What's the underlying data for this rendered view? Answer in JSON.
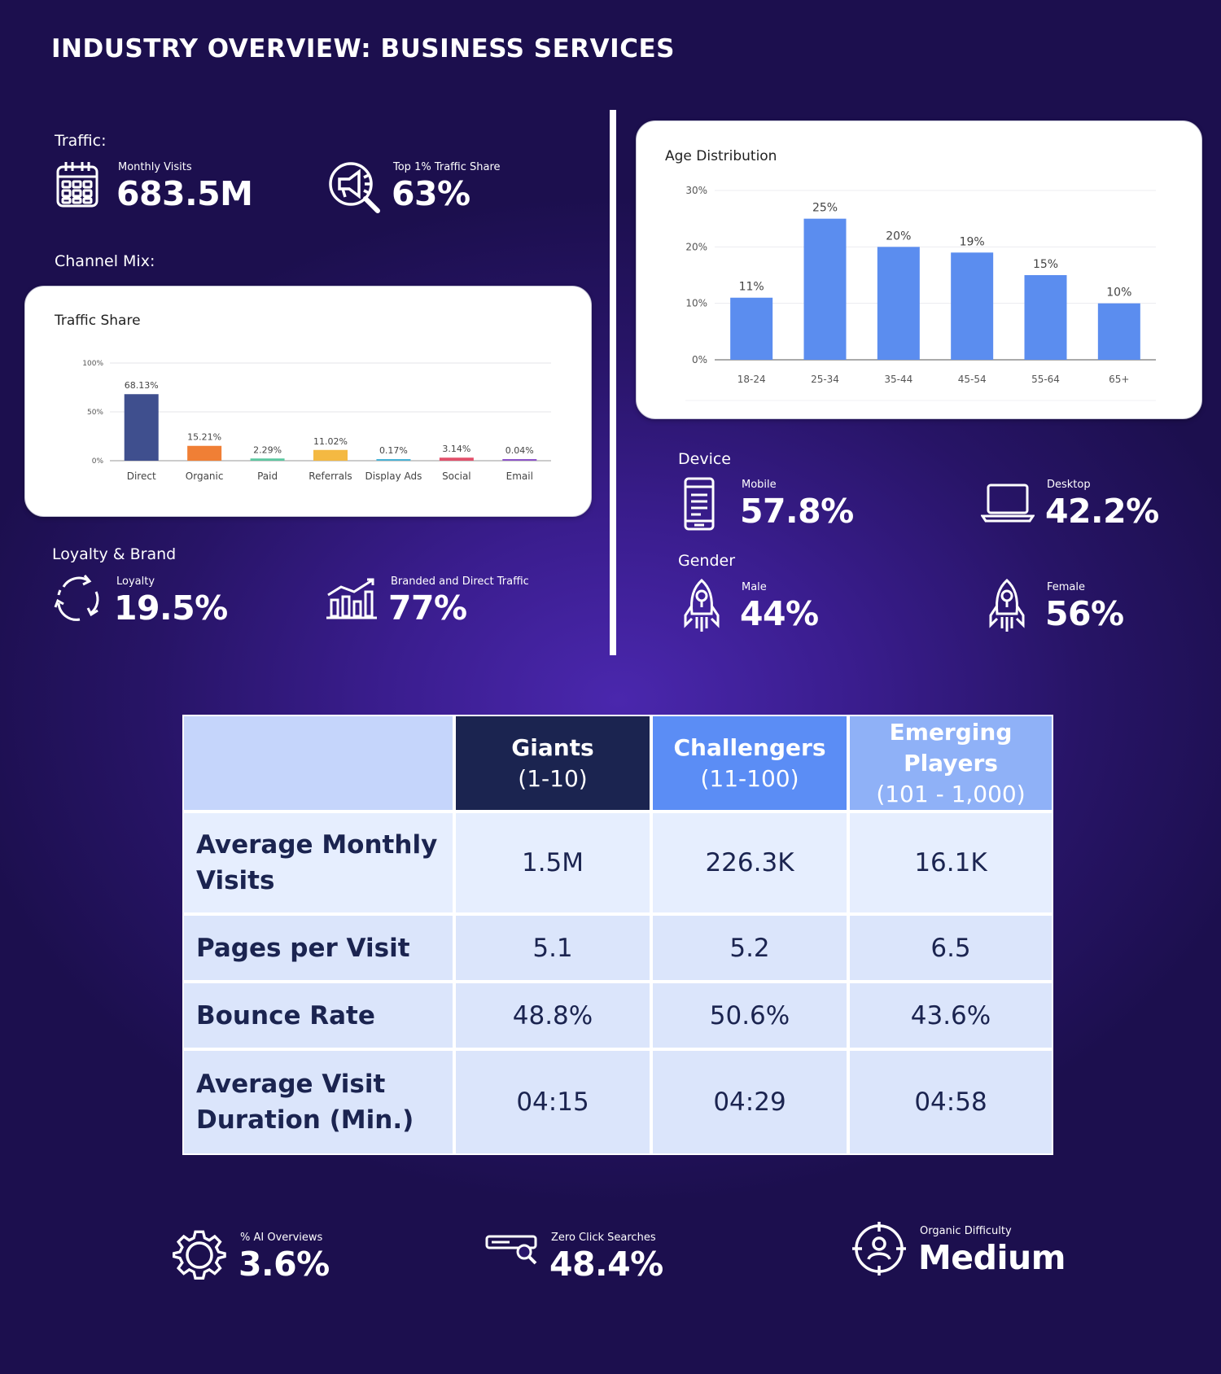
{
  "title": "INDUSTRY OVERVIEW: BUSINESS SERVICES",
  "traffic": {
    "label": "Traffic:",
    "monthly_visits": {
      "label": "Monthly Visits",
      "value": "683.5M",
      "icon": "calendar-icon"
    },
    "top_share": {
      "label": "Top 1% Traffic Share",
      "value": "63%",
      "icon": "megaphone-search-icon"
    }
  },
  "channel_mix": {
    "label": "Channel Mix:",
    "card_title": "Traffic Share"
  },
  "loyalty_brand": {
    "label": "Loyalty & Brand",
    "loyalty": {
      "label": "Loyalty",
      "value": "19.5%",
      "icon": "cycle-arrows-icon"
    },
    "branded": {
      "label": "Branded and Direct Traffic",
      "value": "77%",
      "icon": "bar-growth-icon"
    }
  },
  "age": {
    "card_title": "Age Distribution"
  },
  "device": {
    "label": "Device",
    "mobile": {
      "label": "Mobile",
      "value": "57.8%",
      "icon": "mobile-icon"
    },
    "desktop": {
      "label": "Desktop",
      "value": "42.2%",
      "icon": "laptop-icon"
    }
  },
  "gender": {
    "label": "Gender",
    "male": {
      "label": "Male",
      "value": "44%",
      "icon": "rocket-icon"
    },
    "female": {
      "label": "Female",
      "value": "56%",
      "icon": "rocket-icon"
    }
  },
  "table": {
    "columns": [
      {
        "title": "Giants",
        "range": "(1-10)",
        "bg": "#1b2450",
        "fg": "#ffffff"
      },
      {
        "title": "Challengers",
        "range": "(11-100)",
        "bg": "#5b8df5",
        "fg": "#ffffff"
      },
      {
        "title": "Emerging Players",
        "range": "(101 - 1,000)",
        "bg": "#8fb1f7",
        "fg": "#ffffff"
      }
    ],
    "rows": [
      {
        "label": "Average Monthly Visits",
        "values": [
          "1.5M",
          "226.3K",
          "16.1K"
        ]
      },
      {
        "label": "Pages per Visit",
        "values": [
          "5.1",
          "5.2",
          "6.5"
        ]
      },
      {
        "label": "Bounce Rate",
        "values": [
          "48.8%",
          "50.6%",
          "43.6%"
        ]
      },
      {
        "label": "Average Visit Duration (Min.)",
        "values": [
          "04:15",
          "04:29",
          "04:58"
        ]
      }
    ]
  },
  "footer": {
    "ai_overviews": {
      "label": "% AI Overviews",
      "value": "3.6%",
      "icon": "gear-icon"
    },
    "zero_click": {
      "label": "Zero Click Searches",
      "value": "48.4%",
      "icon": "search-bar-icon"
    },
    "organic_difficulty": {
      "label": "Organic Difficulty",
      "value": "Medium",
      "icon": "target-person-icon"
    }
  },
  "chart_data": [
    {
      "type": "bar",
      "title": "Traffic Share",
      "categories": [
        "Direct",
        "Organic",
        "Paid",
        "Referrals",
        "Display Ads",
        "Social",
        "Email"
      ],
      "values": [
        68.13,
        15.21,
        2.29,
        11.02,
        0.17,
        3.14,
        0.04
      ],
      "value_labels": [
        "68.13%",
        "15.21%",
        "2.29%",
        "11.02%",
        "0.17%",
        "3.14%",
        "0.04%"
      ],
      "colors": [
        "#3f4f8e",
        "#f07f35",
        "#5cc7a0",
        "#f4b942",
        "#49b3d6",
        "#e2506b",
        "#8e54c9"
      ],
      "yticks": [
        "0%",
        "50%",
        "100%"
      ],
      "ylim": [
        0,
        100
      ],
      "grid": true
    },
    {
      "type": "bar",
      "title": "Age Distribution",
      "categories": [
        "18-24",
        "25-34",
        "35-44",
        "45-54",
        "55-64",
        "65+"
      ],
      "values": [
        11,
        25,
        20,
        19,
        15,
        10
      ],
      "value_labels": [
        "11%",
        "25%",
        "20%",
        "19%",
        "15%",
        "10%"
      ],
      "color": "#5b8def",
      "yticks": [
        "0%",
        "10%",
        "20%",
        "30%"
      ],
      "ylim": [
        0,
        30
      ],
      "grid": true
    }
  ]
}
